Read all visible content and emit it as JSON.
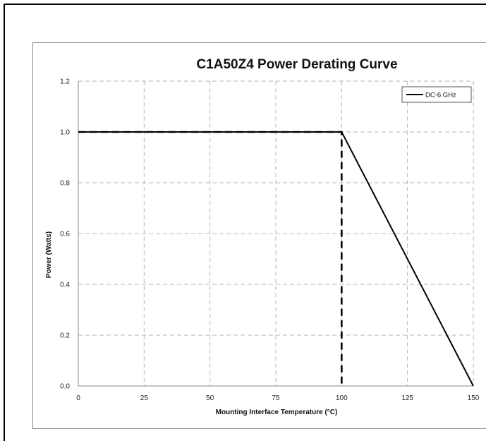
{
  "chart_data": {
    "type": "line",
    "title": "C1A50Z4 Power Derating Curve",
    "xlabel": "Mounting Interface Temperature (°C)",
    "ylabel": "Power (Watts)",
    "xlim": [
      0,
      150
    ],
    "ylim": [
      0,
      1.2
    ],
    "x_ticks": [
      "0",
      "25",
      "50",
      "75",
      "100",
      "125",
      "150"
    ],
    "y_ticks": [
      "0.0",
      "0.2",
      "0.4",
      "0.6",
      "0.8",
      "1.0",
      "1.2"
    ],
    "grid": true,
    "legend_position": "top-right",
    "series": [
      {
        "name": "DC-6 GHz",
        "style": "solid",
        "color": "#000000",
        "x": [
          0,
          100,
          150
        ],
        "y": [
          1.0,
          1.0,
          0.0
        ]
      },
      {
        "style": "dashed",
        "color": "#000000",
        "x": [
          0,
          100,
          100
        ],
        "y": [
          1.0,
          1.0,
          0.0
        ]
      }
    ]
  }
}
